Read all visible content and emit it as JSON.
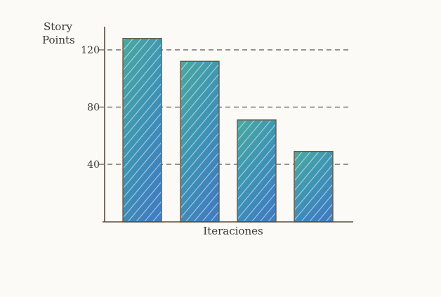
{
  "chart_data": {
    "type": "bar",
    "categories": [
      "",
      "",
      "",
      ""
    ],
    "values": [
      128,
      112,
      71,
      49
    ],
    "xlabel": "Iteraciones",
    "ylabel": [
      "Story",
      "Points"
    ],
    "yticks": [
      40,
      80,
      120
    ],
    "ylim": [
      0,
      140
    ],
    "grid": true,
    "colors": {
      "bar_top": "#4aa8a0",
      "bar_bottom": "#3f7fbf",
      "outline": "#6b5a48",
      "axis": "#5a4a3a",
      "grid": "#5a5650"
    }
  }
}
